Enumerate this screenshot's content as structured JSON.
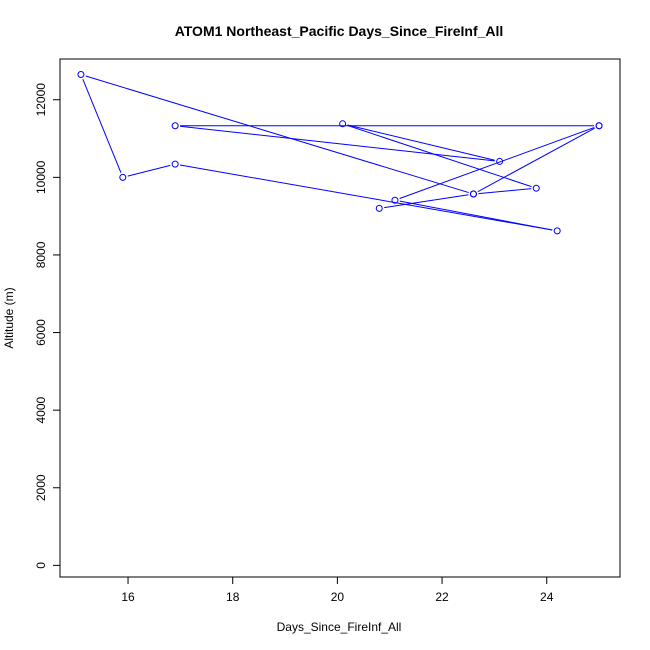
{
  "chart_data": {
    "type": "line",
    "title": "ATOM1 Northeast_Pacific Days_Since_FireInf_All",
    "xlabel": "Days_Since_FireInf_All",
    "ylabel": "Altitude (m)",
    "xlim": [
      14.7,
      25.4
    ],
    "ylim": [
      -300,
      13050
    ],
    "x_ticks": [
      16,
      18,
      20,
      22,
      24
    ],
    "y_ticks": [
      0,
      2000,
      4000,
      6000,
      8000,
      10000,
      12000
    ],
    "series_color": "#0000ff",
    "markers": "open-circle",
    "series": [
      {
        "x": [
          25.0,
          22.6,
          23.8,
          20.1,
          23.1,
          16.9,
          25.0,
          21.1,
          24.2,
          16.9,
          15.9,
          15.1,
          22.6,
          20.8
        ],
        "y": [
          11330,
          9570,
          9720,
          11380,
          10410,
          11330,
          11330,
          9410,
          8620,
          10340,
          10000,
          12650,
          9570,
          9200
        ]
      }
    ]
  }
}
